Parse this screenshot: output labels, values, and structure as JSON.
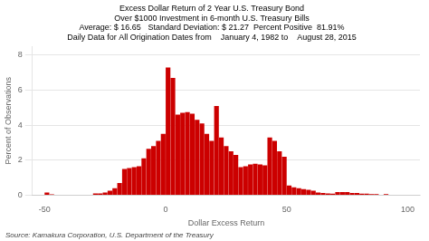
{
  "chart_data": {
    "type": "histogram",
    "title": [
      "Excess Dollar Return of 2 Year U.S. Treasury Bond",
      "Over $1000 Investment in 6-month U.S. Treasury Bills",
      "Average: $ 16.65   Standard Deviation: $ 21.27  Percent Positive  81.91%",
      "Daily Data for All Origination Dates from    January 4, 1982 to    August 28, 2015"
    ],
    "xlabel": "Dollar Excess Return",
    "ylabel": "Percent of Observations",
    "annotations": [
      "Source: Kamakura Corporation, U.S. Department of the Treasury"
    ],
    "bins": [
      -50,
      -48,
      -46,
      -44,
      -42,
      -40,
      -38,
      -36,
      -34,
      -32,
      -30,
      -28,
      -26,
      -24,
      -22,
      -20,
      -18,
      -16,
      -14,
      -12,
      -10,
      -8,
      -6,
      -4,
      -2,
      0,
      2,
      4,
      6,
      8,
      10,
      12,
      14,
      16,
      18,
      20,
      22,
      24,
      26,
      28,
      30,
      32,
      34,
      36,
      38,
      40,
      42,
      44,
      46,
      48,
      50,
      52,
      54,
      56,
      58,
      60,
      62,
      64,
      66,
      68,
      70,
      72,
      74,
      76,
      78,
      80,
      82,
      84,
      86,
      88,
      90,
      92,
      94,
      96,
      98,
      100
    ],
    "values": [
      0.15,
      0.05,
      0.0,
      0.0,
      0.0,
      0.0,
      0.0,
      0.0,
      0.0,
      0.0,
      0.1,
      0.1,
      0.15,
      0.25,
      0.4,
      0.7,
      1.5,
      1.55,
      1.6,
      1.65,
      2.1,
      2.65,
      2.8,
      3.1,
      3.5,
      7.3,
      6.7,
      4.6,
      4.7,
      4.75,
      4.65,
      4.3,
      4.1,
      3.5,
      3.1,
      5.1,
      3.3,
      2.8,
      2.5,
      2.3,
      1.6,
      1.65,
      1.75,
      1.8,
      1.75,
      1.7,
      3.3,
      3.1,
      2.5,
      2.2,
      0.55,
      0.45,
      0.4,
      0.35,
      0.3,
      0.25,
      0.15,
      0.12,
      0.1,
      0.08,
      0.18,
      0.18,
      0.18,
      0.12,
      0.12,
      0.08,
      0.08,
      0.06,
      0.06,
      0.0,
      0.06,
      0.0,
      0.0,
      0.0,
      0.0
    ],
    "color": "#CC0000",
    "xlim": [
      -55,
      105
    ],
    "ylim": [
      0,
      8.5
    ],
    "xticks": [
      -50,
      0,
      50,
      100
    ],
    "yticks": [
      0,
      2,
      4,
      6,
      8
    ],
    "grid": true
  }
}
